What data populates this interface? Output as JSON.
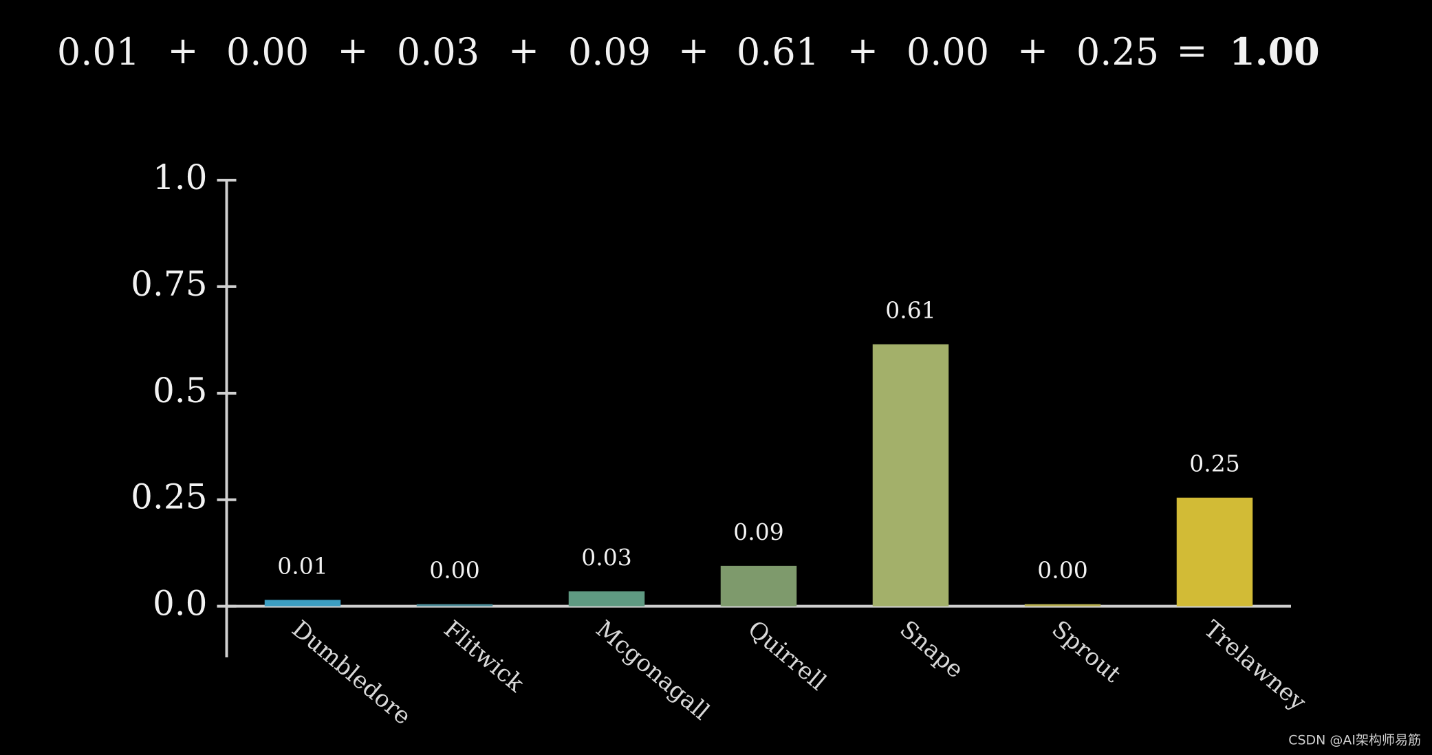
{
  "equation": {
    "terms": [
      "0.01",
      "0.00",
      "0.03",
      "0.09",
      "0.61",
      "0.00",
      "0.25"
    ],
    "plus": "+",
    "equals": "=",
    "total": "1.00"
  },
  "chart_data": {
    "type": "bar",
    "categories": [
      "Dumbledore",
      "Flitwick",
      "Mcgonagall",
      "Quirrell",
      "Snape",
      "Sprout",
      "Trelawney"
    ],
    "values": [
      0.01,
      0.0,
      0.03,
      0.09,
      0.61,
      0.0,
      0.25
    ],
    "value_labels": [
      "0.01",
      "0.00",
      "0.03",
      "0.09",
      "0.61",
      "0.00",
      "0.25"
    ],
    "colors": [
      "#3c9ec2",
      "#4d8f9c",
      "#5f9a82",
      "#7e9a6c",
      "#a3b06a",
      "#b8b050",
      "#d2bb36"
    ],
    "ylim": [
      -0.12,
      1.0
    ],
    "yticks": [
      {
        "value": 0,
        "label": "0.0"
      },
      0.25,
      0.5,
      0.75,
      {
        "value": 1,
        "label": "1.0"
      }
    ],
    "grid": false
  },
  "watermark": "CSDN @AI架构师易筋"
}
